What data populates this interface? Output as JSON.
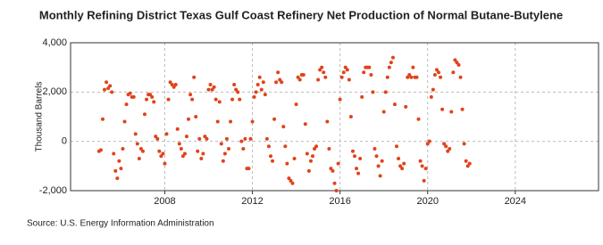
{
  "chart_data": {
    "type": "scatter",
    "title": "Monthly Refining District Texas Gulf Coast Refinery Net Production of Normal Butane-Butylene",
    "y_label": "Thousand Barrels",
    "source": "Source: U.S. Energy Information Administration",
    "xlim": [
      2003.7,
      2027.8
    ],
    "ylim": [
      -2000,
      4000
    ],
    "xticks": [
      2008,
      2012,
      2016,
      2020,
      2024
    ],
    "yticks": [
      {
        "value": -2000,
        "label": "-2,000"
      },
      0,
      {
        "value": 2000,
        "label": "2,000"
      },
      {
        "value": 4000,
        "label": "4,000"
      }
    ],
    "grid": true,
    "series": [
      {
        "name": "Thousand Barrels",
        "color": "#e0431b",
        "x": [
          2005.0,
          2005.083,
          2005.167,
          2005.25,
          2005.333,
          2005.417,
          2005.5,
          2005.583,
          2005.667,
          2005.75,
          2005.833,
          2005.917,
          2006.0,
          2006.083,
          2006.167,
          2006.25,
          2006.333,
          2006.417,
          2006.5,
          2006.583,
          2006.667,
          2006.75,
          2006.833,
          2006.917,
          2007.0,
          2007.083,
          2007.167,
          2007.25,
          2007.333,
          2007.417,
          2007.5,
          2007.583,
          2007.667,
          2007.75,
          2007.833,
          2007.917,
          2008.0,
          2008.083,
          2008.167,
          2008.25,
          2008.333,
          2008.417,
          2008.5,
          2008.583,
          2008.667,
          2008.75,
          2008.833,
          2008.917,
          2009.0,
          2009.083,
          2009.167,
          2009.25,
          2009.333,
          2009.417,
          2009.5,
          2009.583,
          2009.667,
          2009.75,
          2009.833,
          2009.917,
          2010.0,
          2010.083,
          2010.167,
          2010.25,
          2010.333,
          2010.417,
          2010.5,
          2010.583,
          2010.667,
          2010.75,
          2010.833,
          2010.917,
          2011.0,
          2011.083,
          2011.167,
          2011.25,
          2011.333,
          2011.417,
          2011.5,
          2011.583,
          2011.667,
          2011.75,
          2011.833,
          2011.917,
          2012.0,
          2012.083,
          2012.167,
          2012.25,
          2012.333,
          2012.417,
          2012.5,
          2012.583,
          2012.667,
          2012.75,
          2012.833,
          2012.917,
          2013.0,
          2013.083,
          2013.167,
          2013.25,
          2013.333,
          2013.417,
          2013.5,
          2013.583,
          2013.667,
          2013.75,
          2013.833,
          2013.917,
          2014.0,
          2014.083,
          2014.167,
          2014.25,
          2014.333,
          2014.417,
          2014.5,
          2014.583,
          2014.667,
          2014.75,
          2014.833,
          2014.917,
          2015.0,
          2015.083,
          2015.167,
          2015.25,
          2015.333,
          2015.417,
          2015.5,
          2015.583,
          2015.667,
          2015.75,
          2015.833,
          2015.917,
          2016.0,
          2016.083,
          2016.167,
          2016.25,
          2016.333,
          2016.417,
          2016.5,
          2016.583,
          2016.667,
          2016.75,
          2016.833,
          2016.917,
          2017.0,
          2017.083,
          2017.167,
          2017.25,
          2017.333,
          2017.417,
          2017.5,
          2017.583,
          2017.667,
          2017.75,
          2017.833,
          2017.917,
          2018.0,
          2018.083,
          2018.167,
          2018.25,
          2018.333,
          2018.417,
          2018.5,
          2018.583,
          2018.667,
          2018.75,
          2018.833,
          2018.917,
          2019.0,
          2019.083,
          2019.167,
          2019.25,
          2019.333,
          2019.417,
          2019.5,
          2019.583,
          2019.667,
          2019.75,
          2019.833,
          2019.917,
          2020.0,
          2020.083,
          2020.167,
          2020.25,
          2020.333,
          2020.417,
          2020.5,
          2020.583,
          2020.667,
          2020.75,
          2020.833,
          2020.917,
          2021.0,
          2021.083,
          2021.167,
          2021.25,
          2021.333,
          2021.417,
          2021.5,
          2021.583,
          2021.667,
          2021.75,
          2021.833,
          2021.917
        ],
        "values": [
          -400,
          -350,
          900,
          2100,
          2400,
          2150,
          2250,
          2000,
          -500,
          -1200,
          -1500,
          -800,
          -1100,
          -300,
          800,
          1500,
          1900,
          1950,
          1800,
          1800,
          300,
          -100,
          -700,
          -300,
          -400,
          1100,
          1700,
          1900,
          1900,
          1800,
          1600,
          200,
          100,
          -400,
          -600,
          -500,
          -900,
          300,
          1700,
          2400,
          2300,
          2200,
          2300,
          500,
          -100,
          -300,
          -600,
          -500,
          200,
          900,
          1900,
          1700,
          2600,
          1000,
          -400,
          100,
          -700,
          -500,
          200,
          100,
          2100,
          2300,
          2100,
          2200,
          1700,
          800,
          1600,
          -100,
          -800,
          -500,
          100,
          -300,
          800,
          1700,
          2300,
          2100,
          2000,
          1700,
          0,
          -300,
          100,
          -1100,
          -1100,
          100,
          800,
          1800,
          2000,
          2300,
          2600,
          2100,
          2400,
          1900,
          100,
          -200,
          -600,
          -800,
          900,
          2400,
          2800,
          2500,
          2400,
          600,
          -200,
          -900,
          -1500,
          -1600,
          -1700,
          -700,
          1500,
          2600,
          2500,
          2700,
          2700,
          700,
          -500,
          -1200,
          -800,
          -600,
          -300,
          -200,
          2500,
          2900,
          3000,
          2800,
          2600,
          800,
          -300,
          -1100,
          -1200,
          -1700,
          -2000,
          -900,
          1700,
          2600,
          2800,
          3000,
          2900,
          2500,
          1000,
          -400,
          -600,
          -1100,
          -1300,
          -700,
          1800,
          2800,
          3000,
          3000,
          3000,
          2700,
          2000,
          -300,
          -600,
          -1000,
          -1400,
          -800,
          1200,
          2000,
          2600,
          3000,
          3200,
          3400,
          1500,
          -200,
          -700,
          -1000,
          -1100,
          -900,
          1400,
          2600,
          2700,
          2600,
          3000,
          2600,
          2600,
          900,
          -800,
          -1000,
          -1600,
          -1100,
          -100,
          0,
          1800,
          2100,
          2700,
          2900,
          2800,
          2600,
          1300,
          -100,
          -200,
          -400,
          -300,
          1200,
          2800,
          3300,
          3200,
          3100,
          2600,
          1300,
          -100,
          -800,
          -1000,
          -900
        ]
      }
    ]
  }
}
